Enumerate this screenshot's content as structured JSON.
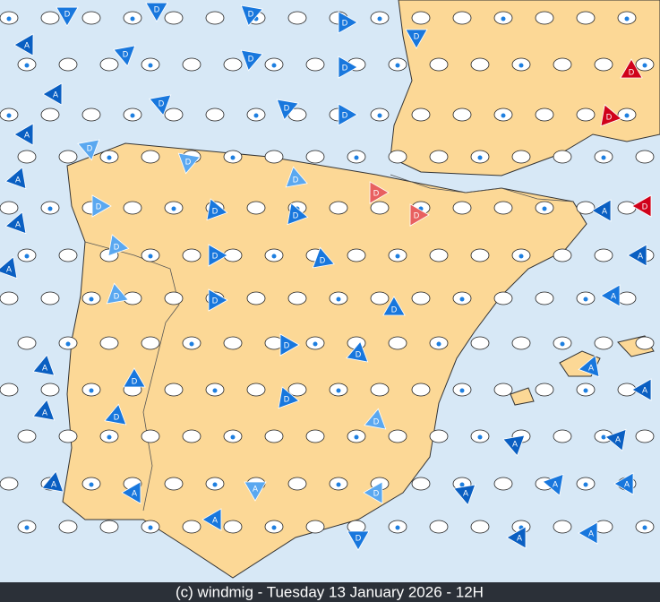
{
  "footer": "(c) windmig - Tuesday 13 January 2026 - 12H",
  "symbols": [
    "D",
    "D",
    "D",
    "D",
    "A",
    "D",
    "D",
    "D",
    "A",
    "D",
    "D",
    "D",
    "A",
    "D",
    "D",
    "D",
    "A",
    "D",
    "D",
    "D",
    "A",
    "D",
    "D",
    "D",
    "A",
    "D",
    "D",
    "D",
    "A",
    "D",
    "D",
    "D",
    "A",
    "D",
    "D",
    "D",
    "A",
    "A",
    "A",
    "D",
    "A",
    "D",
    "D",
    "D",
    "D",
    "D",
    "D",
    "D",
    "A",
    "A",
    "A",
    "A",
    "A",
    "A",
    "A",
    "A",
    "A",
    "A",
    "A",
    "A"
  ]
}
